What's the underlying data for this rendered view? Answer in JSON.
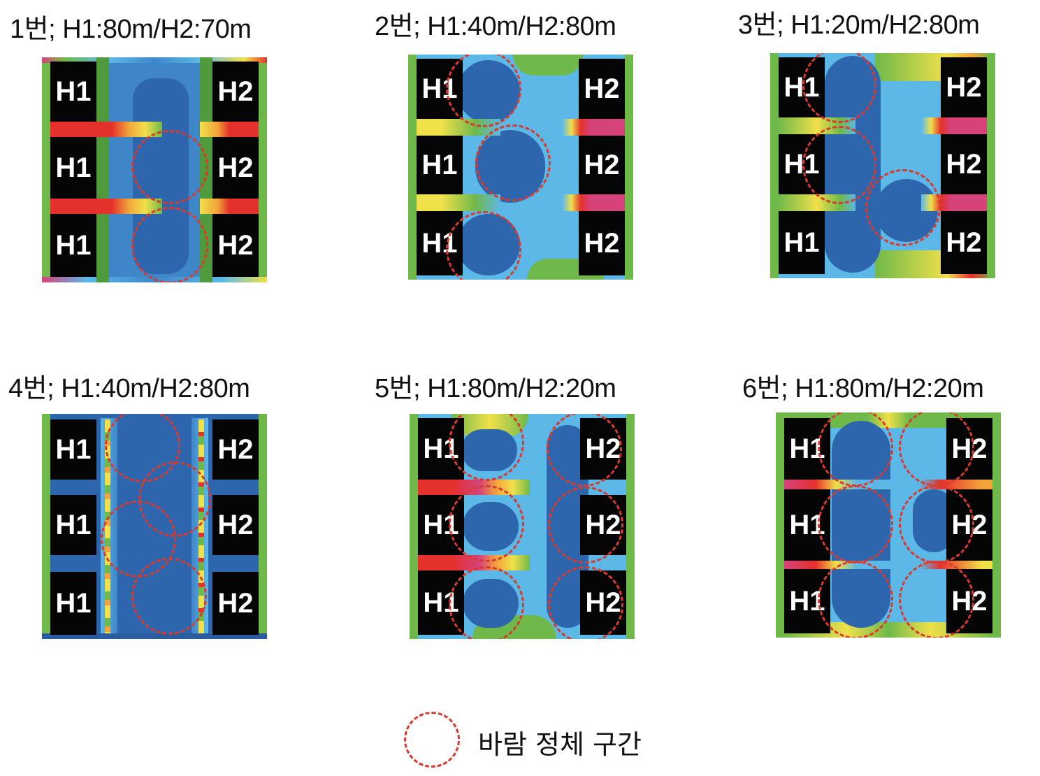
{
  "panels": [
    {
      "title": "1번; H1:80m/H2:70m",
      "left_label": "H1",
      "right_label": "H2"
    },
    {
      "title": "2번; H1:40m/H2:80m",
      "left_label": "H1",
      "right_label": "H2"
    },
    {
      "title": "3번; H1:20m/H2:80m",
      "left_label": "H1",
      "right_label": "H2"
    },
    {
      "title": "4번; H1:40m/H2:80m",
      "left_label": "H1",
      "right_label": "H2"
    },
    {
      "title": "5번; H1:80m/H2:20m",
      "left_label": "H1",
      "right_label": "H2"
    },
    {
      "title": "6번; H1:80m/H2:20m",
      "left_label": "H1",
      "right_label": "H2"
    }
  ],
  "legend": {
    "label": "바람 정체 구간"
  },
  "colors": {
    "stagnation_circle": "#d83a30",
    "building": "#050505",
    "dark_blue": "#2e66ad",
    "medium_blue": "#3f86c9",
    "light_blue": "#5cb8e6",
    "green": "#6fb94a",
    "yellow": "#f0e04a",
    "orange": "#f2a43a",
    "red": "#e4312b",
    "magenta": "#d5437a"
  }
}
